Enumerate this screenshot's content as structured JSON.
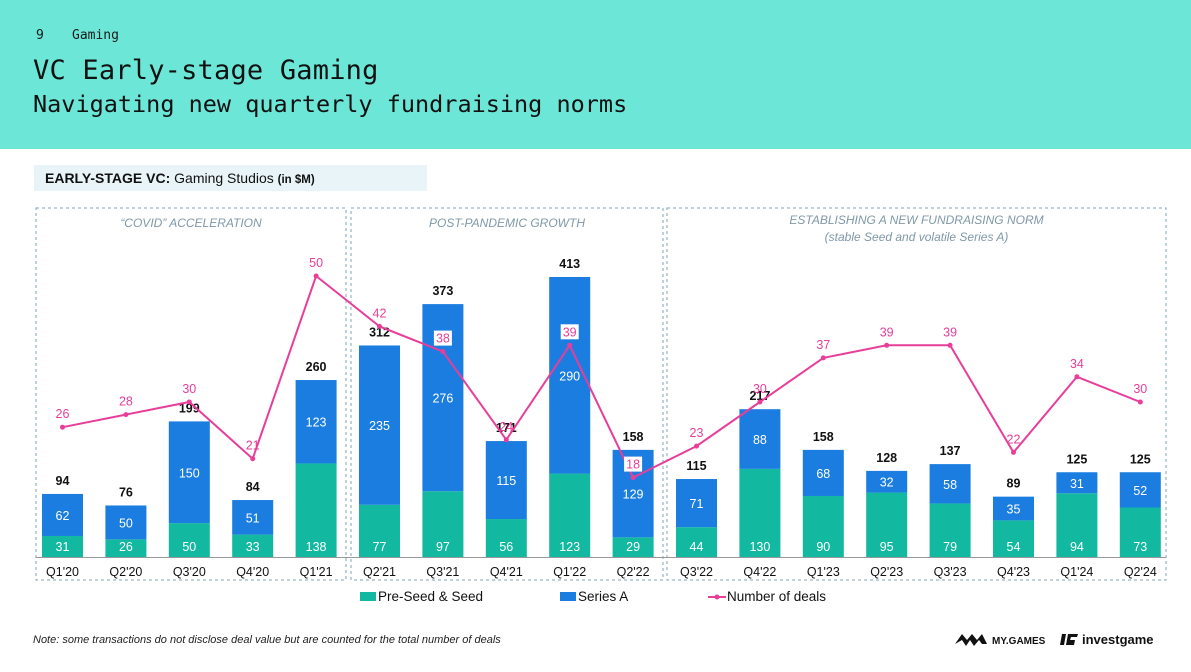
{
  "header": {
    "page_number": "9",
    "section": "Gaming",
    "title": "VC Early-stage Gaming",
    "subtitle": "Navigating new quarterly fundraising norms"
  },
  "chart_label": {
    "bold": "EARLY-STAGE VC:",
    "text": "Gaming Studios",
    "unit": "(in $M)"
  },
  "periods": [
    {
      "title": "“COVID” ACCELERATION",
      "note": ""
    },
    {
      "title": "POST-PANDEMIC GROWTH",
      "note": ""
    },
    {
      "title": "ESTABLISHING A NEW FUNDRAISING NORM",
      "note": "(stable Seed and volatile Series A)"
    }
  ],
  "footnote": "Note: some transactions do not disclose deal value but are counted for the total number of deals",
  "logos": {
    "mygames": "MY.GAMES",
    "investgame": "investgame"
  },
  "colors": {
    "header_bg": "#6ce6d7",
    "seed": "#13b8a0",
    "series_a": "#1a7ddf",
    "deals": "#e83e9a"
  },
  "chart_data": {
    "type": "bar",
    "stacked": true,
    "categories": [
      "Q1'20",
      "Q2'20",
      "Q3'20",
      "Q4'20",
      "Q1'21",
      "Q2'21",
      "Q3'21",
      "Q4'21",
      "Q1'22",
      "Q2'22",
      "Q3'22",
      "Q4'22",
      "Q1'23",
      "Q2'23",
      "Q3'23",
      "Q4'23",
      "Q1'24",
      "Q2'24"
    ],
    "series": [
      {
        "name": "Pre-Seed & Seed",
        "values": [
          31,
          26,
          50,
          33,
          138,
          77,
          97,
          56,
          123,
          29,
          44,
          130,
          90,
          95,
          79,
          54,
          94,
          73
        ]
      },
      {
        "name": "Series A",
        "values": [
          62,
          50,
          150,
          51,
          123,
          235,
          276,
          115,
          290,
          129,
          71,
          88,
          68,
          32,
          58,
          35,
          31,
          52
        ]
      }
    ],
    "totals": [
      94,
      76,
      199,
      84,
      260,
      312,
      373,
      171,
      413,
      158,
      115,
      217,
      158,
      128,
      137,
      89,
      125,
      125
    ],
    "line": {
      "name": "Number of deals",
      "values": [
        26,
        28,
        30,
        21,
        50,
        42,
        38,
        24,
        39,
        18,
        23,
        30,
        37,
        39,
        39,
        22,
        34,
        30
      ]
    },
    "ylim": [
      0,
      430
    ],
    "legend_position": "bottom",
    "grid": false
  }
}
